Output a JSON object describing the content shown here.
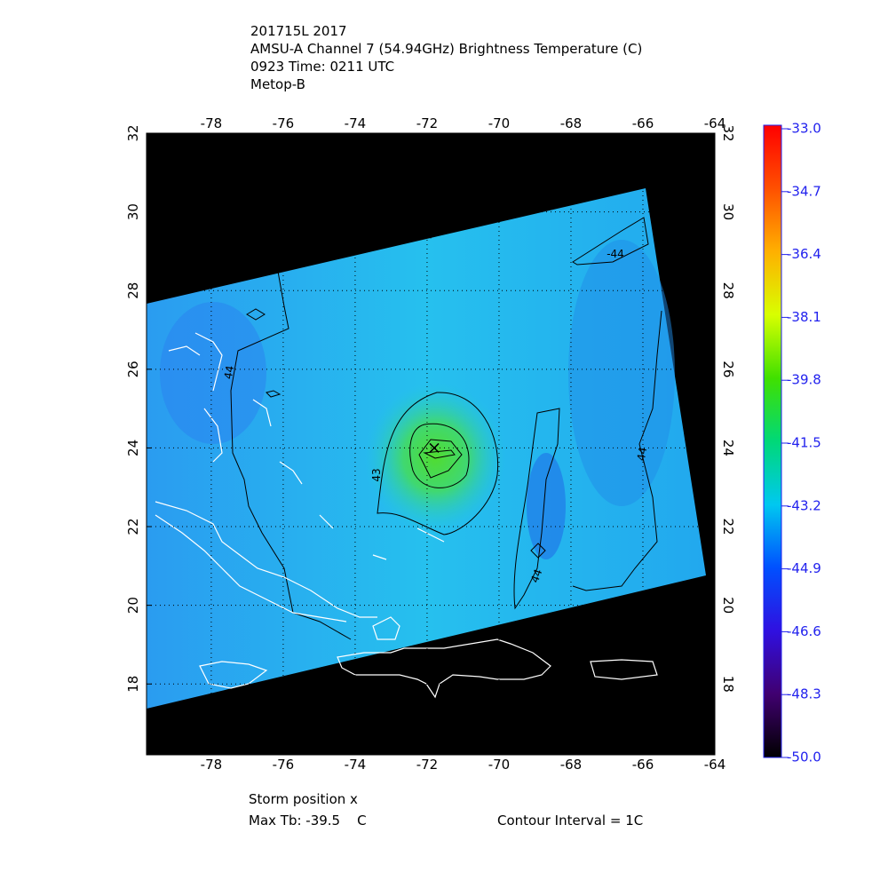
{
  "header": {
    "lines": [
      "201715L 2017",
      "AMSU-A Channel 7 (54.94GHz) Brightness Temperature (C)",
      "0923 Time: 0211 UTC",
      "Metop-B"
    ]
  },
  "map": {
    "xlim": [
      -79.8,
      -64
    ],
    "ylim": [
      16.2,
      32
    ],
    "xticks": [
      -78,
      -76,
      -74,
      -72,
      -70,
      -68,
      -66,
      -64
    ],
    "yticks": [
      18,
      20,
      22,
      24,
      26,
      28,
      30,
      32
    ],
    "grid": true,
    "storm_position": {
      "lon": -71.8,
      "lat": 24.0
    },
    "contour_labels": [
      "44",
      "43",
      "44",
      "44",
      "-44"
    ]
  },
  "colorbar": {
    "lim": [
      -50,
      -33
    ],
    "ticks": [
      {
        "value": -33,
        "label": "-33.0"
      },
      {
        "value": -34.7,
        "label": "-34.7"
      },
      {
        "value": -36.4,
        "label": "-36.4"
      },
      {
        "value": -38.1,
        "label": "-38.1"
      },
      {
        "value": -39.8,
        "label": "-39.8"
      },
      {
        "value": -41.5,
        "label": "-41.5"
      },
      {
        "value": -43.2,
        "label": "-43.2"
      },
      {
        "value": -44.9,
        "label": "-44.9"
      },
      {
        "value": -46.6,
        "label": "-46.6"
      },
      {
        "value": -48.3,
        "label": "-48.3"
      },
      {
        "value": -50,
        "label": "-50.0"
      }
    ]
  },
  "footer": {
    "storm_label": "Storm position x",
    "max_tb": "Max Tb: -39.5    C",
    "contour_interval": "Contour Interval = 1C"
  }
}
